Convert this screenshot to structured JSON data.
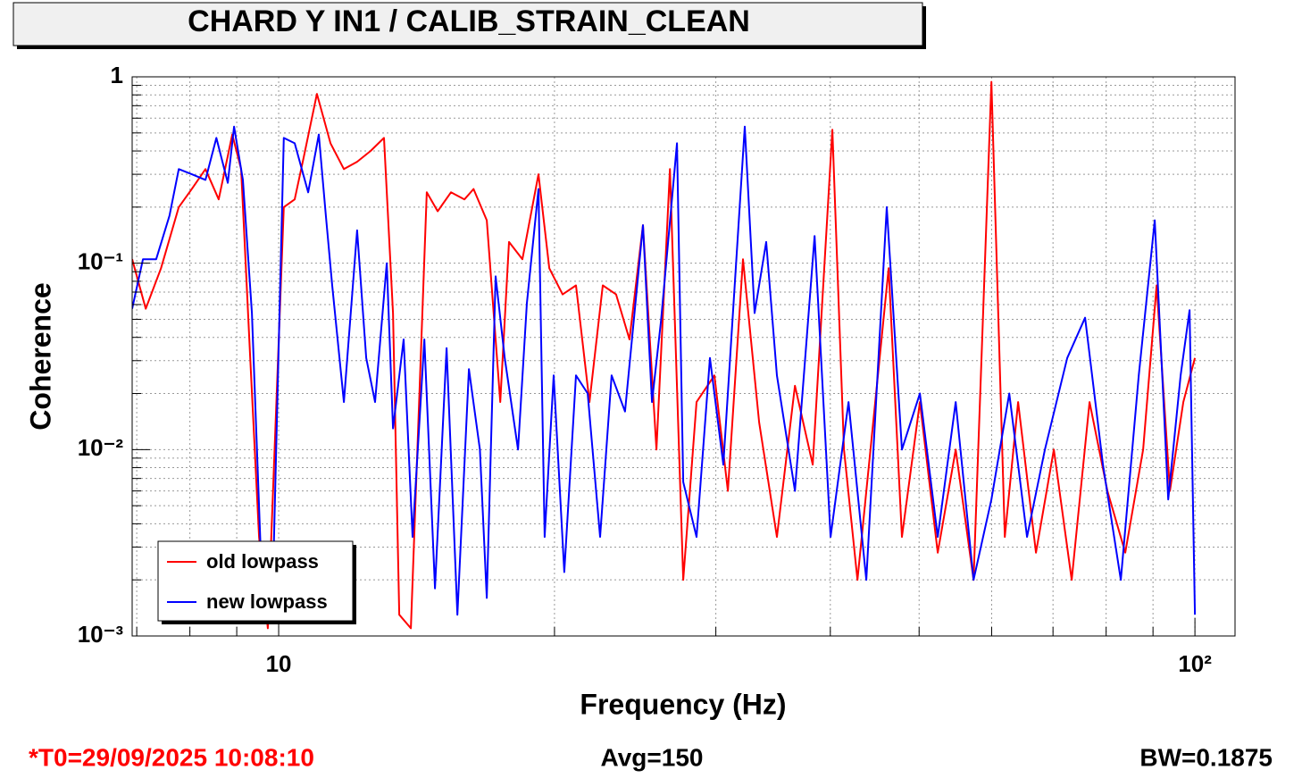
{
  "chart_data": {
    "type": "line",
    "title": "CHARD Y IN1 / CALIB_STRAIN_CLEAN",
    "x_label": "Frequency (Hz)",
    "y_label": "Coherence",
    "footer_left": "*T0=29/09/2025 10:08:10",
    "footer_center": "Avg=150",
    "footer_right": "BW=0.1875",
    "xscale": "log",
    "yscale": "log",
    "grid": true,
    "legend": "lower left",
    "xlim": [
      6.92,
      110.6
    ],
    "ylim": [
      0.001,
      1
    ],
    "xticks": [
      10,
      {
        "value": 100,
        "label": "10²"
      }
    ],
    "yticks": [
      {
        "value": 0.001,
        "label": "10⁻³"
      },
      {
        "value": 0.01,
        "label": "10⁻²"
      },
      {
        "value": 0.1,
        "label": "10⁻¹"
      },
      1
    ],
    "xminorticks": [
      7,
      8,
      9,
      20,
      30,
      40,
      50,
      60,
      70,
      80,
      90
    ],
    "yminorticks": [
      0.002,
      0.003,
      0.004,
      0.005,
      0.006,
      0.007,
      0.008,
      0.009,
      0.02,
      0.03,
      0.04,
      0.05,
      0.06,
      0.07,
      0.08,
      0.09,
      0.2,
      0.3,
      0.4,
      0.5,
      0.6,
      0.7,
      0.8,
      0.9
    ],
    "series": [
      {
        "name": "old lowpass",
        "color": "#ff0000",
        "x": [
          6.92,
          7.16,
          7.44,
          7.78,
          8.04,
          8.32,
          8.6,
          8.9,
          9.1,
          9.31,
          9.52,
          9.73,
          10.13,
          10.41,
          10.65,
          11.01,
          11.39,
          11.78,
          12.18,
          12.6,
          13.03,
          13.33,
          13.54,
          13.94,
          14.51,
          14.91,
          15.42,
          15.95,
          16.32,
          16.87,
          17.45,
          17.84,
          18.45,
          19.21,
          19.74,
          20.41,
          21.11,
          21.84,
          22.58,
          23.35,
          24.15,
          24.98,
          25.84,
          26.73,
          27.64,
          28.58,
          29.89,
          30.92,
          32.12,
          33.45,
          34.98,
          36.6,
          38.27,
          40.21,
          41.4,
          42.82,
          44.78,
          46.31,
          47.89,
          50.1,
          52.4,
          54.81,
          57.33,
          59.96,
          62.01,
          64.13,
          67.07,
          70.15,
          73.36,
          76.74,
          80.26,
          83.95,
          87.79,
          90.82,
          93.91,
          97.12,
          100
        ],
        "values": [
          0.105,
          0.057,
          0.094,
          0.2,
          0.25,
          0.32,
          0.22,
          0.49,
          0.32,
          0.031,
          0.0034,
          0.0011,
          0.2,
          0.22,
          0.37,
          0.81,
          0.44,
          0.32,
          0.35,
          0.4,
          0.47,
          0.054,
          0.0013,
          0.0011,
          0.24,
          0.19,
          0.24,
          0.22,
          0.25,
          0.17,
          0.018,
          0.13,
          0.105,
          0.3,
          0.094,
          0.068,
          0.076,
          0.018,
          0.076,
          0.068,
          0.039,
          0.16,
          0.01,
          0.32,
          0.002,
          0.018,
          0.025,
          0.006,
          0.105,
          0.014,
          0.0034,
          0.022,
          0.0083,
          0.52,
          0.01,
          0.002,
          0.018,
          0.094,
          0.0034,
          0.018,
          0.0028,
          0.01,
          0.002,
          0.94,
          0.0034,
          0.018,
          0.0028,
          0.01,
          0.002,
          0.018,
          0.006,
          0.0028,
          0.01,
          0.076,
          0.006,
          0.018,
          0.031
        ]
      },
      {
        "name": "new lowpass",
        "color": "#0000ff",
        "x": [
          6.92,
          7.11,
          7.35,
          7.6,
          7.78,
          8.04,
          8.32,
          8.55,
          8.8,
          8.94,
          9.14,
          9.35,
          9.56,
          9.84,
          10.13,
          10.41,
          10.77,
          11.06,
          11.26,
          11.44,
          11.78,
          12.18,
          12.46,
          12.74,
          13.12,
          13.33,
          13.69,
          14.0,
          14.42,
          14.81,
          15.25,
          15.67,
          16.13,
          16.58,
          16.87,
          17.25,
          17.65,
          18.25,
          18.66,
          19.21,
          19.51,
          19.96,
          20.5,
          21.11,
          21.74,
          22.43,
          23.09,
          23.88,
          24.98,
          25.55,
          26.14,
          27.21,
          27.64,
          28.58,
          29.56,
          30.57,
          32.26,
          33.07,
          34.05,
          34.98,
          36.6,
          38.45,
          40.03,
          41.87,
          43.79,
          46.1,
          47.89,
          50.1,
          52.4,
          54.81,
          57.33,
          59.96,
          62.71,
          65.58,
          68.59,
          72.55,
          75.87,
          79.37,
          83.0,
          86.83,
          90.4,
          93.5,
          96.47,
          98.67,
          100
        ],
        "values": [
          0.057,
          0.105,
          0.105,
          0.18,
          0.32,
          0.3,
          0.28,
          0.47,
          0.27,
          0.54,
          0.28,
          0.054,
          0.0028,
          0.0014,
          0.47,
          0.44,
          0.24,
          0.49,
          0.18,
          0.076,
          0.018,
          0.15,
          0.031,
          0.018,
          0.1,
          0.013,
          0.039,
          0.0034,
          0.039,
          0.0018,
          0.035,
          0.0013,
          0.027,
          0.01,
          0.0016,
          0.085,
          0.031,
          0.01,
          0.061,
          0.25,
          0.0034,
          0.025,
          0.0022,
          0.025,
          0.02,
          0.0034,
          0.025,
          0.016,
          0.16,
          0.018,
          0.049,
          0.44,
          0.0067,
          0.0034,
          0.031,
          0.0083,
          0.54,
          0.054,
          0.13,
          0.025,
          0.006,
          0.14,
          0.0034,
          0.018,
          0.002,
          0.2,
          0.01,
          0.02,
          0.0034,
          0.018,
          0.002,
          0.0054,
          0.02,
          0.0034,
          0.01,
          0.031,
          0.051,
          0.0083,
          0.002,
          0.025,
          0.17,
          0.0054,
          0.025,
          0.056,
          0.0013
        ]
      }
    ]
  }
}
